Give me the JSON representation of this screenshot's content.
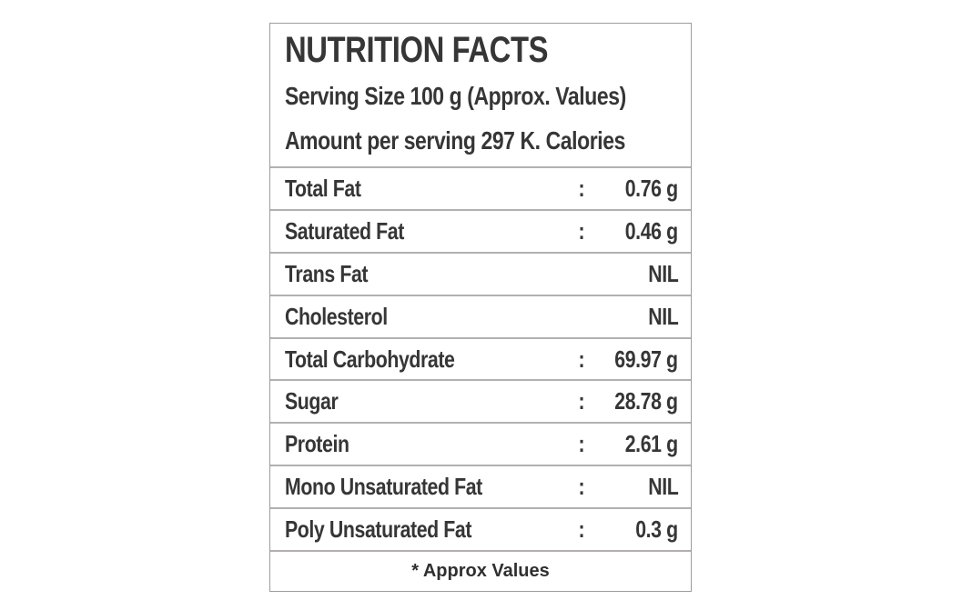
{
  "label": {
    "title": "NUTRITION FACTS",
    "serving_size_line": "Serving Size 100 g (Approx. Values)",
    "amount_line": "Amount per serving 297 K. Calories",
    "rows": [
      {
        "name": "Total Fat",
        "sep": ":",
        "value": "0.76 g"
      },
      {
        "name": "Saturated Fat",
        "sep": ":",
        "value": "0.46 g"
      },
      {
        "name": "Trans Fat",
        "sep": "",
        "value": "NIL"
      },
      {
        "name": "Cholesterol",
        "sep": "",
        "value": "NIL"
      },
      {
        "name": "Total Carbohydrate",
        "sep": ":",
        "value": "69.97 g"
      },
      {
        "name": "Sugar",
        "sep": ":",
        "value": "28.78 g"
      },
      {
        "name": "Protein",
        "sep": ":",
        "value": "2.61 g"
      },
      {
        "name": "Mono Unsaturated Fat",
        "sep": ":",
        "value": "NIL"
      },
      {
        "name": "Poly Unsaturated Fat",
        "sep": ":",
        "value": "0.3 g"
      }
    ],
    "footnote": "* Approx Values",
    "colors": {
      "text": "#363636",
      "outer_border": "#9c9c9c",
      "separator": "#b2b0b0",
      "background": "#ffffff"
    }
  }
}
